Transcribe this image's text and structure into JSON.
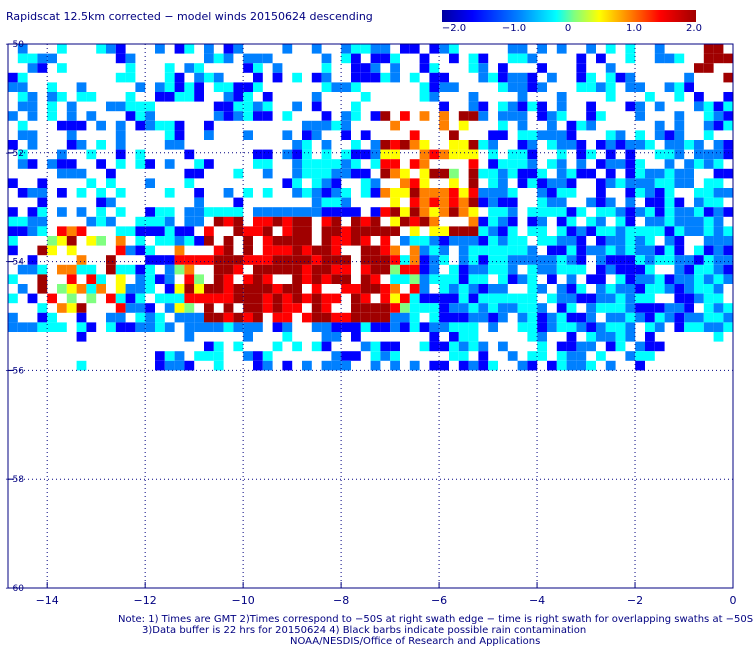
{
  "title": "Rapidscat 12.5km corrected − model winds 20150624 descending",
  "colorbar": {
    "ticks": [
      "−2.0",
      "−1.0",
      "0",
      "1.0",
      "2.0"
    ],
    "colors": [
      "#0000a0",
      "#0000ff",
      "#0080ff",
      "#00ffff",
      "#80ff80",
      "#ffff00",
      "#ff8000",
      "#ff0000",
      "#a00000"
    ]
  },
  "axes": {
    "x_ticks": [
      "−14",
      "−12",
      "−10",
      "−8",
      "−6",
      "−4",
      "−2",
      "0"
    ],
    "y_ticks": [
      "−50",
      "−52",
      "−54",
      "−56",
      "−58",
      "−60"
    ],
    "xlim": [
      -14.8,
      0
    ],
    "ylim": [
      -60,
      -50
    ]
  },
  "notes": {
    "line1": "Note: 1) Times are GMT 2)Times correspond to −50S at right swath edge − time is right swath for overlapping swaths at −50S",
    "line2": "3)Data buffer is 22 hrs for 20150624 4) Black barbs indicate possible rain contamination",
    "line3": "NOAA/NESDIS/Office of Research and Applications"
  }
}
